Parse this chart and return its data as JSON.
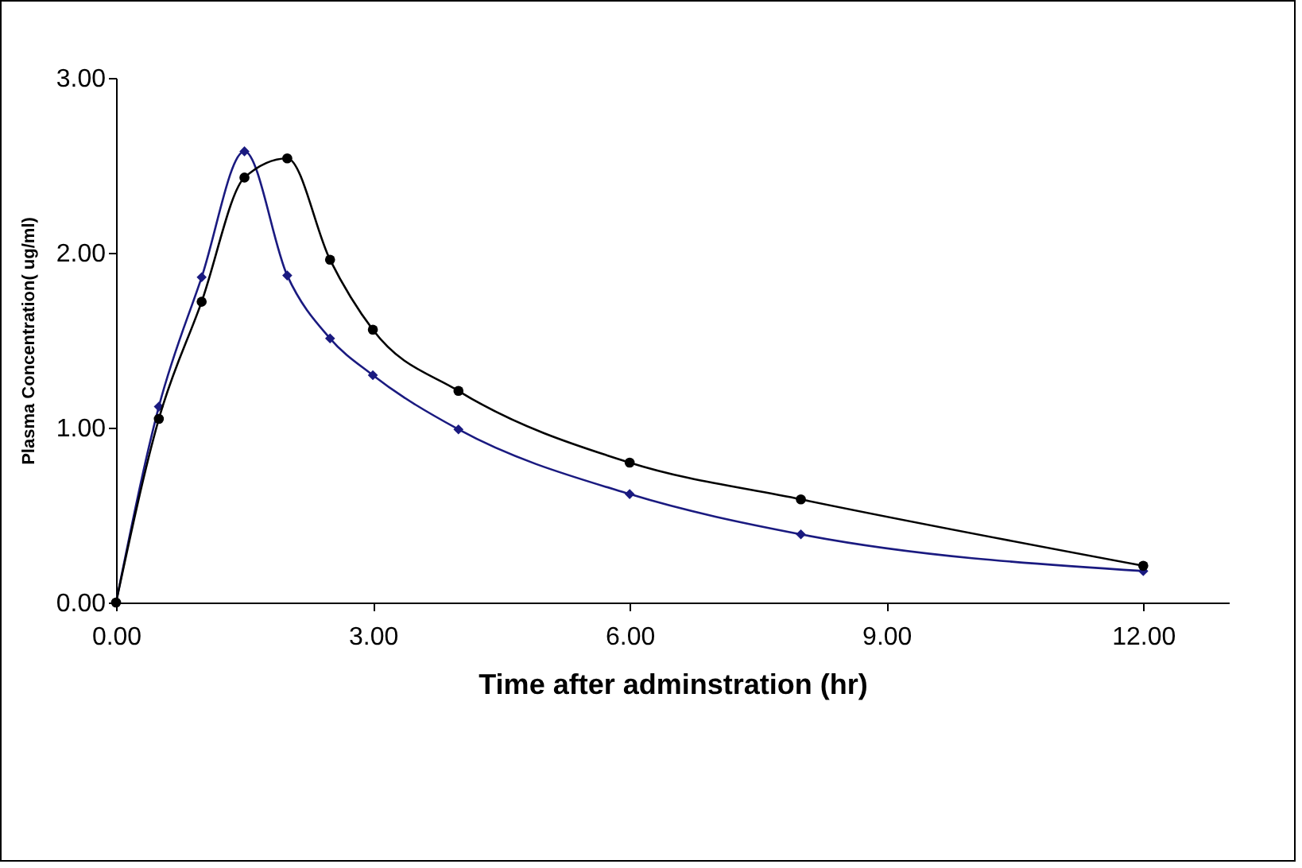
{
  "chart_data": {
    "type": "line",
    "xlabel": "Time after adminstration (hr)",
    "ylabel": "Plasma Concentration( ug/ml)",
    "xlim": [
      0,
      13
    ],
    "ylim": [
      0,
      3
    ],
    "xticks": [
      {
        "value": 0,
        "label": "0.00"
      },
      {
        "value": 3,
        "label": "3.00"
      },
      {
        "value": 6,
        "label": "6.00"
      },
      {
        "value": 9,
        "label": "9.00"
      },
      {
        "value": 12,
        "label": "12.00"
      }
    ],
    "yticks": [
      {
        "value": 0,
        "label": "0.00"
      },
      {
        "value": 1,
        "label": "1.00"
      },
      {
        "value": 2,
        "label": "2.00"
      },
      {
        "value": 3,
        "label": "3.00"
      }
    ],
    "x": [
      0,
      0.5,
      1,
      1.5,
      2,
      2.5,
      3,
      4,
      6,
      8,
      12
    ],
    "series": [
      {
        "color": "#1a1a80",
        "marker": "diamond",
        "values": [
          0,
          1.12,
          1.86,
          2.58,
          1.87,
          1.51,
          1.3,
          0.99,
          0.62,
          0.39,
          0.18
        ]
      },
      {
        "color": "#000000",
        "marker": "circle",
        "values": [
          0,
          1.05,
          1.72,
          2.43,
          2.54,
          1.96,
          1.56,
          1.21,
          0.8,
          0.59,
          0.21
        ]
      }
    ],
    "grid": false,
    "line_style": "solid"
  }
}
